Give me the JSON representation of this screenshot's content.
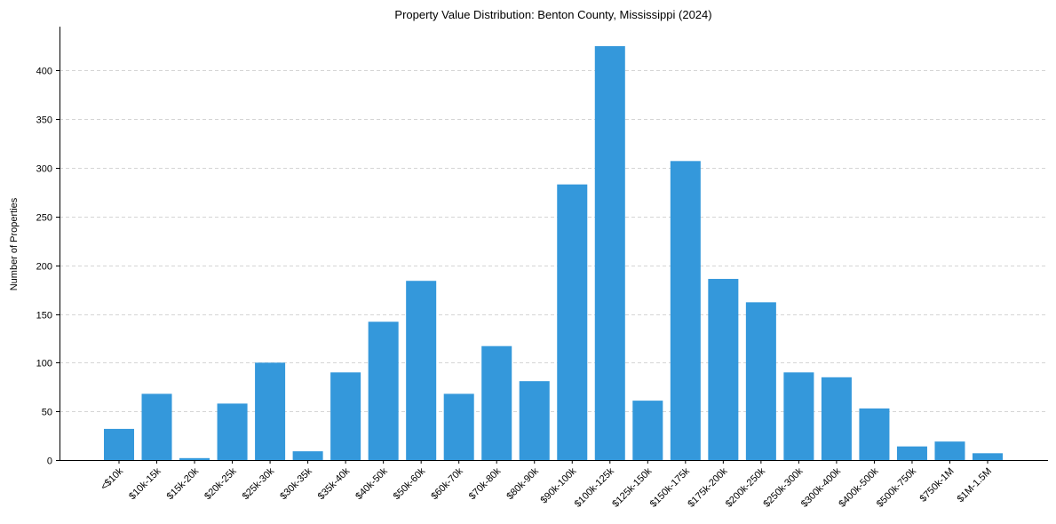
{
  "chart_data": {
    "type": "bar",
    "title": "Property Value Distribution: Benton County, Mississippi (2024)",
    "xlabel": "",
    "ylabel": "Number of Properties",
    "ylim": [
      0,
      445
    ],
    "yticks": [
      0,
      50,
      100,
      150,
      200,
      250,
      300,
      350,
      400
    ],
    "grid": "y",
    "bar_color": "#3498db",
    "categories": [
      "<$10k",
      "$10k-15k",
      "$15k-20k",
      "$20k-25k",
      "$25k-30k",
      "$30k-35k",
      "$35k-40k",
      "$40k-50k",
      "$50k-60k",
      "$60k-70k",
      "$70k-80k",
      "$80k-90k",
      "$90k-100k",
      "$100k-125k",
      "$125k-150k",
      "$150k-175k",
      "$175k-200k",
      "$200k-250k",
      "$250k-300k",
      "$300k-400k",
      "$400k-500k",
      "$500k-750k",
      "$750k-1M",
      "$1M-1.5M"
    ],
    "values": [
      32,
      68,
      2,
      58,
      100,
      9,
      90,
      142,
      184,
      68,
      117,
      81,
      283,
      425,
      61,
      307,
      186,
      162,
      90,
      85,
      53,
      14,
      19,
      7
    ]
  }
}
